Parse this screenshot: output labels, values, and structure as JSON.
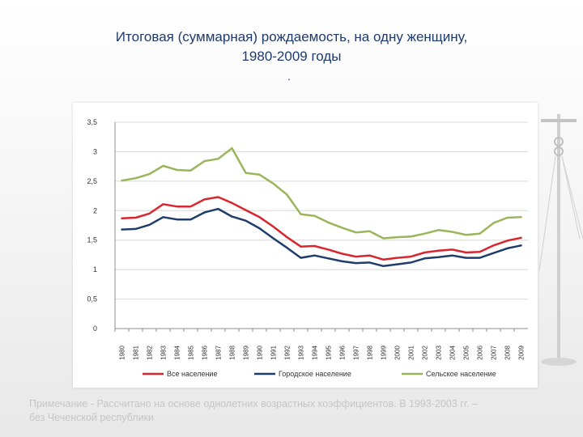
{
  "title": {
    "line1": "Итоговая (суммарная) рождаемость, на одну женщину,",
    "line2": "1980-2009 годы",
    "mark": "."
  },
  "note": {
    "line1": "Примечание - Рассчитано на основе однолетних возрастных коэффициентов. В 1993-2003 гг. –",
    "line2": "без Чеченской республики"
  },
  "decor": {
    "icon": "justice-scales-icon"
  },
  "chart_data": {
    "type": "line",
    "title": "",
    "xlabel": "",
    "ylabel": "",
    "ylim": [
      0,
      3.5
    ],
    "yticks": [
      "0",
      "0,5",
      "1",
      "1,5",
      "2",
      "2,5",
      "3",
      "3,5"
    ],
    "ytick_values": [
      0,
      0.5,
      1,
      1.5,
      2,
      2.5,
      3,
      3.5
    ],
    "grid": true,
    "legend_position": "bottom",
    "x": [
      "1980",
      "1981",
      "1982",
      "1983",
      "1984",
      "1985",
      "1986",
      "1987",
      "1988",
      "1989",
      "1990",
      "1991",
      "1992",
      "1993",
      "1994",
      "1995",
      "1996",
      "1997",
      "1998",
      "1999",
      "2000",
      "2001",
      "2002",
      "2003",
      "2004",
      "2005",
      "2006",
      "2007",
      "2008",
      "2009"
    ],
    "series": [
      {
        "name": "Все население",
        "color": "#d9262e",
        "values": [
          1.87,
          1.88,
          1.95,
          2.11,
          2.07,
          2.07,
          2.19,
          2.23,
          2.13,
          2.01,
          1.89,
          1.73,
          1.55,
          1.39,
          1.4,
          1.34,
          1.27,
          1.22,
          1.24,
          1.17,
          1.2,
          1.22,
          1.29,
          1.32,
          1.34,
          1.29,
          1.3,
          1.41,
          1.49,
          1.54
        ]
      },
      {
        "name": "Городское население",
        "color": "#1f3d6b",
        "values": [
          1.68,
          1.69,
          1.76,
          1.89,
          1.85,
          1.85,
          1.97,
          2.03,
          1.9,
          1.83,
          1.7,
          1.53,
          1.37,
          1.2,
          1.24,
          1.19,
          1.14,
          1.11,
          1.12,
          1.06,
          1.09,
          1.12,
          1.19,
          1.21,
          1.24,
          1.2,
          1.2,
          1.28,
          1.36,
          1.41
        ]
      },
      {
        "name": "Сельское население",
        "color": "#9bb55a",
        "values": [
          2.51,
          2.55,
          2.62,
          2.76,
          2.69,
          2.68,
          2.84,
          2.88,
          3.06,
          2.64,
          2.61,
          2.46,
          2.27,
          1.94,
          1.91,
          1.8,
          1.71,
          1.63,
          1.65,
          1.53,
          1.55,
          1.56,
          1.61,
          1.67,
          1.64,
          1.59,
          1.61,
          1.79,
          1.88,
          1.89
        ]
      }
    ]
  }
}
